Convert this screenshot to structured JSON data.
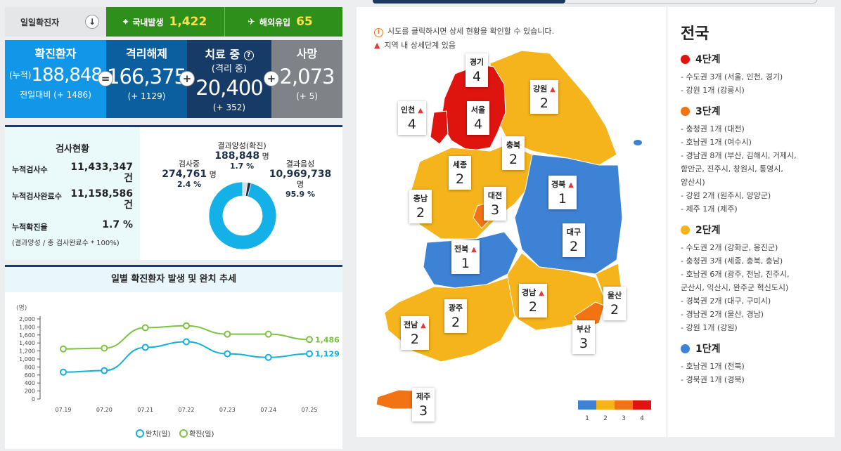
{
  "top": {
    "daily_label": "일일확진자",
    "down_icon": "↓",
    "domestic_label": "국내발생",
    "domestic_value": "1,422",
    "overseas_label": "해외유입",
    "overseas_value": "65"
  },
  "stats": {
    "confirmed": {
      "label": "확진환자",
      "prefix": "(누적)",
      "value": "188,848",
      "delta": "전일대비 (+ 1486)"
    },
    "released": {
      "label": "격리해제",
      "value": "166,375",
      "delta": "(+ 1129)"
    },
    "treating": {
      "label": "치료 중",
      "sub": "(격리 중)",
      "value": "20,400",
      "delta": "(+ 352)"
    },
    "deaths": {
      "label": "사망",
      "value": "2,073",
      "delta": "(+ 5)"
    },
    "op_equals": "=",
    "op_plus": "+"
  },
  "tests": {
    "title": "검사현황",
    "rows": [
      {
        "key": "누적검사수",
        "value": "11,433,347",
        "unit": "건"
      },
      {
        "key": "누적검사완료수",
        "value": "11,158,586",
        "unit": "건"
      },
      {
        "key": "누적확진율",
        "value": "1.7 %",
        "unit": ""
      }
    ],
    "note": "(결과양성 / 총 검사완료수 * 100%)",
    "donut": {
      "testing": {
        "label": "검사중",
        "value": "274,761",
        "unit": "명",
        "pct": "2.4 %"
      },
      "positive": {
        "label": "결과양성(확진)",
        "value": "188,848",
        "unit": "명",
        "pct": "1.7 %"
      },
      "negative": {
        "label": "결과음성",
        "value": "10,969,738",
        "unit": "명",
        "pct": "95.9 %"
      },
      "shares": [
        2.4,
        1.7,
        95.9
      ],
      "colors": [
        "#d8dde2",
        "#1c2f4a",
        "#13b1e8"
      ]
    }
  },
  "chart_data": {
    "type": "line",
    "title": "일별 확진환자 발생 및 완치 추세",
    "ylabel": "(명)",
    "categories": [
      "07.19",
      "07.20",
      "07.21",
      "07.22",
      "07.23",
      "07.24",
      "07.25"
    ],
    "ylim": [
      0,
      2000
    ],
    "yticks": [
      "0",
      "200",
      "400",
      "600",
      "800",
      "1,000",
      "1,200",
      "1,400",
      "1,600",
      "1,800",
      "2,000"
    ],
    "series": [
      {
        "name": "완치(일)",
        "values": [
          670,
          710,
          1290,
          1430,
          1130,
          1040,
          1129
        ],
        "color": "#13b1d8",
        "end_label": "1,129"
      },
      {
        "name": "확진(일)",
        "values": [
          1250,
          1270,
          1780,
          1830,
          1620,
          1620,
          1486
        ],
        "color": "#7dc242",
        "end_label": "1,486"
      }
    ]
  },
  "map": {
    "notice1": "시도를 클릭하시면 상세 현황을 확인할 수 있습니다.",
    "notice2": "지역 내 상세단계 있음",
    "regions": [
      {
        "name": "경기",
        "level": "4",
        "warn": false
      },
      {
        "name": "강원",
        "level": "2",
        "warn": true
      },
      {
        "name": "인천",
        "level": "4",
        "warn": true
      },
      {
        "name": "서울",
        "level": "4",
        "warn": false
      },
      {
        "name": "충북",
        "level": "2",
        "warn": false
      },
      {
        "name": "세종",
        "level": "2",
        "warn": false
      },
      {
        "name": "경북",
        "level": "1",
        "warn": true
      },
      {
        "name": "충남",
        "level": "2",
        "warn": false
      },
      {
        "name": "대전",
        "level": "3",
        "warn": false
      },
      {
        "name": "대구",
        "level": "2",
        "warn": false
      },
      {
        "name": "전북",
        "level": "1",
        "warn": true
      },
      {
        "name": "경남",
        "level": "2",
        "warn": true
      },
      {
        "name": "울산",
        "level": "2",
        "warn": false
      },
      {
        "name": "광주",
        "level": "2",
        "warn": false
      },
      {
        "name": "전남",
        "level": "2",
        "warn": true
      },
      {
        "name": "부산",
        "level": "3",
        "warn": false
      },
      {
        "name": "제주",
        "level": "3",
        "warn": false
      }
    ],
    "scale": [
      "1",
      "2",
      "3",
      "4"
    ],
    "colors": {
      "l1": "#3e82d6",
      "l2": "#f5b41c",
      "l3": "#f27314",
      "l4": "#e0140f"
    }
  },
  "legend": {
    "country": "전국",
    "levels": [
      {
        "label": "4단계",
        "color": "#e0140f",
        "items": [
          "- 수도권 3개 (서울, 인천, 경기)",
          "- 강원 1개 (강릉시)"
        ]
      },
      {
        "label": "3단계",
        "color": "#f27314",
        "items": [
          "- 충청권 1개 (대전)",
          "- 호남권 1개 (여수시)",
          "- 경남권 8개 (부산, 김해시, 거제시,",
          "함안군, 진주시, 창원시, 통영시,",
          "양산시)",
          "- 강원 2개 (원주시, 양양군)",
          "- 제주 1개 (제주)"
        ]
      },
      {
        "label": "2단계",
        "color": "#f5b41c",
        "items": [
          "- 수도권 2개 (강화군, 옹진군)",
          "- 충청권 3개 (세종, 충북, 충남)",
          "- 호남권 6개 (광주, 전남, 진주시,",
          "군산시, 익산시, 완주군 혁신도시)",
          "- 경북권 2개 (대구, 구미시)",
          "- 경남권 2개 (울산, 경남)",
          "- 강원 1개 (강원)"
        ]
      },
      {
        "label": "1단계",
        "color": "#3e82d6",
        "items": [
          "- 호남권 1개 (전북)",
          "- 경북권 1개 (경북)"
        ]
      }
    ]
  }
}
